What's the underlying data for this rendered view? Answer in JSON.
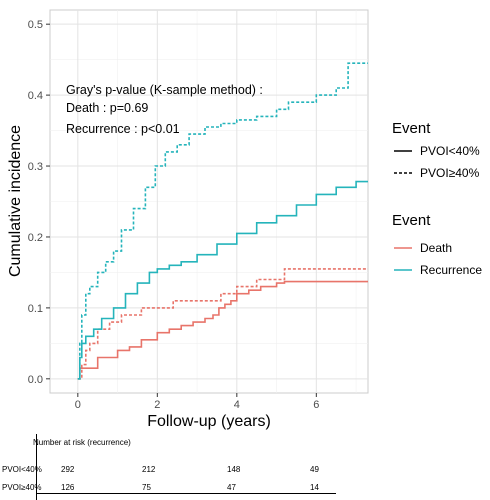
{
  "chart_data": {
    "type": "line",
    "xlabel": "Follow-up (years)",
    "ylabel": "Cumulative incidence",
    "xlim": [
      -0.7,
      7.3
    ],
    "ylim": [
      -0.02,
      0.52
    ],
    "x_ticks": [
      0,
      2,
      4,
      6
    ],
    "y_ticks": [
      0.0,
      0.1,
      0.2,
      0.3,
      0.4,
      0.5
    ],
    "y_tick_labels": [
      "0.0",
      "0.1",
      "0.2",
      "0.3",
      "0.4",
      "0.5"
    ],
    "grid": true,
    "step": true,
    "annotations": [
      "Gray's p-value (K-sample method) :",
      "Death : p=0.69",
      "Recurrence : p<0.01"
    ],
    "legend_linetype": {
      "title": "Event",
      "entries": [
        {
          "label": "PVOI<40%",
          "dash": "solid"
        },
        {
          "label": "PVOI≥40%",
          "dash": "dashed"
        }
      ]
    },
    "legend_color": {
      "title": "Event",
      "entries": [
        {
          "label": "Death",
          "color": "#e8746a"
        },
        {
          "label": "Recurrence",
          "color": "#25b4bb"
        }
      ]
    },
    "series": [
      {
        "event": "Death",
        "group": "PVOI<40%",
        "color": "#e8746a",
        "dash": "solid",
        "x": [
          0,
          0.05,
          0.3,
          0.5,
          0.75,
          1.0,
          1.3,
          1.6,
          2.0,
          2.3,
          2.6,
          2.9,
          3.2,
          3.4,
          3.55,
          3.7,
          3.85,
          4.0,
          4.3,
          4.6,
          5.0,
          5.2,
          7.3
        ],
        "y": [
          0,
          0.015,
          0.015,
          0.03,
          0.03,
          0.04,
          0.045,
          0.055,
          0.065,
          0.07,
          0.075,
          0.08,
          0.085,
          0.09,
          0.1,
          0.105,
          0.11,
          0.12,
          0.125,
          0.13,
          0.135,
          0.137,
          0.137
        ]
      },
      {
        "event": "Death",
        "group": "PVOI≥40%",
        "color": "#e8746a",
        "dash": "dashed",
        "x": [
          0,
          0.1,
          0.2,
          0.3,
          0.5,
          0.8,
          1.1,
          1.6,
          2.4,
          3.3,
          3.6,
          4.0,
          4.5,
          5.0,
          5.2,
          7.3
        ],
        "y": [
          0,
          0.02,
          0.04,
          0.05,
          0.07,
          0.08,
          0.09,
          0.1,
          0.11,
          0.11,
          0.12,
          0.13,
          0.14,
          0.14,
          0.155,
          0.155
        ]
      },
      {
        "event": "Recurrence",
        "group": "PVOI<40%",
        "color": "#25b4bb",
        "dash": "solid",
        "x": [
          0,
          0.05,
          0.1,
          0.2,
          0.4,
          0.6,
          0.9,
          1.2,
          1.5,
          1.8,
          2.0,
          2.3,
          2.6,
          3.0,
          3.5,
          4.0,
          4.5,
          5.0,
          5.5,
          6.0,
          6.5,
          7.0,
          7.3
        ],
        "y": [
          0,
          0.03,
          0.05,
          0.06,
          0.07,
          0.085,
          0.1,
          0.12,
          0.135,
          0.15,
          0.155,
          0.16,
          0.165,
          0.175,
          0.19,
          0.205,
          0.22,
          0.23,
          0.245,
          0.26,
          0.27,
          0.278,
          0.278
        ]
      },
      {
        "event": "Recurrence",
        "group": "PVOI≥40%",
        "color": "#25b4bb",
        "dash": "dashed",
        "x": [
          0,
          0.05,
          0.1,
          0.2,
          0.3,
          0.5,
          0.7,
          0.9,
          1.1,
          1.4,
          1.7,
          1.95,
          2.2,
          2.5,
          2.8,
          3.2,
          3.6,
          4.0,
          4.5,
          5.0,
          5.3,
          5.7,
          6.0,
          6.5,
          6.8,
          7.3
        ],
        "y": [
          0,
          0.05,
          0.09,
          0.12,
          0.13,
          0.15,
          0.165,
          0.18,
          0.21,
          0.24,
          0.27,
          0.3,
          0.32,
          0.33,
          0.345,
          0.355,
          0.36,
          0.365,
          0.37,
          0.38,
          0.39,
          0.39,
          0.4,
          0.41,
          0.445,
          0.445
        ]
      }
    ]
  },
  "risk_table": {
    "title": "Number at risk (recurrence)",
    "rows": [
      {
        "label": "PVOI<40%",
        "values": [
          "292",
          "212",
          "148",
          "49"
        ]
      },
      {
        "label": "PVOI≥40%",
        "values": [
          "126",
          "75",
          "47",
          "14"
        ]
      }
    ]
  }
}
